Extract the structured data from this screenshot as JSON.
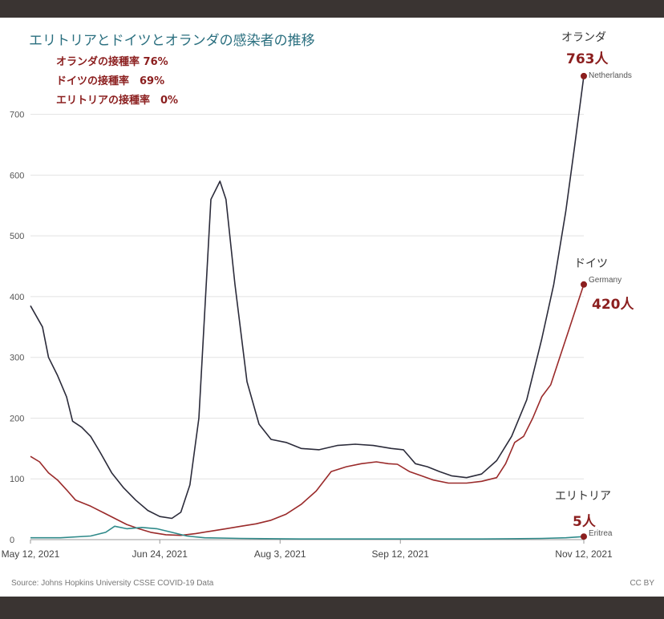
{
  "title": "エリトリアとドイツとオランダの感染者の推移",
  "vaccination_notes": [
    "オランダの接種率 76%",
    "ドイツの接種率　69%",
    "エリトリアの接種率　0%"
  ],
  "source": "Source: Johns Hopkins University CSSE COVID-19 Data",
  "license": "CC BY",
  "annotations": {
    "netherlands": {
      "jp": "オランダ",
      "value": "763人",
      "en": "Netherlands"
    },
    "germany": {
      "jp": "ドイツ",
      "value": "420人",
      "en": "Germany"
    },
    "eritrea": {
      "jp": "エリトリア",
      "value": "5人",
      "en": "Eritrea"
    }
  },
  "colors": {
    "netherlands": "#2b2b3a",
    "germany": "#9a2a2a",
    "eritrea": "#2f8a8a",
    "accent": "#8b1e1e"
  },
  "chart_data": {
    "type": "line",
    "x_ticks": [
      0,
      43,
      83,
      123,
      184
    ],
    "x_tick_labels": [
      "May 12, 2021",
      "Jun 24, 2021",
      "Aug 3, 2021",
      "Sep 12, 2021",
      "Nov 12, 2021"
    ],
    "y_ticks": [
      0,
      100,
      200,
      300,
      400,
      500,
      600,
      700
    ],
    "ylim": [
      0,
      780
    ],
    "xlim": [
      0,
      184
    ],
    "grid": true,
    "series": [
      {
        "name": "Netherlands",
        "key": "netherlands",
        "points": [
          [
            0,
            385
          ],
          [
            4,
            350
          ],
          [
            6,
            300
          ],
          [
            9,
            270
          ],
          [
            12,
            235
          ],
          [
            14,
            195
          ],
          [
            17,
            185
          ],
          [
            20,
            170
          ],
          [
            23,
            145
          ],
          [
            27,
            110
          ],
          [
            31,
            85
          ],
          [
            35,
            65
          ],
          [
            39,
            48
          ],
          [
            43,
            38
          ],
          [
            47,
            35
          ],
          [
            50,
            45
          ],
          [
            53,
            90
          ],
          [
            56,
            200
          ],
          [
            58,
            380
          ],
          [
            60,
            560
          ],
          [
            63,
            590
          ],
          [
            65,
            560
          ],
          [
            68,
            420
          ],
          [
            72,
            260
          ],
          [
            76,
            190
          ],
          [
            80,
            165
          ],
          [
            85,
            160
          ],
          [
            90,
            150
          ],
          [
            96,
            148
          ],
          [
            102,
            155
          ],
          [
            108,
            157
          ],
          [
            114,
            155
          ],
          [
            120,
            150
          ],
          [
            124,
            148
          ],
          [
            128,
            125
          ],
          [
            132,
            120
          ],
          [
            136,
            112
          ],
          [
            140,
            105
          ],
          [
            145,
            102
          ],
          [
            150,
            108
          ],
          [
            155,
            130
          ],
          [
            160,
            170
          ],
          [
            165,
            230
          ],
          [
            170,
            330
          ],
          [
            174,
            420
          ],
          [
            178,
            540
          ],
          [
            181,
            650
          ],
          [
            184,
            763
          ]
        ]
      },
      {
        "name": "Germany",
        "key": "germany",
        "points": [
          [
            0,
            137
          ],
          [
            3,
            128
          ],
          [
            6,
            110
          ],
          [
            9,
            98
          ],
          [
            12,
            82
          ],
          [
            15,
            65
          ],
          [
            20,
            55
          ],
          [
            24,
            45
          ],
          [
            28,
            35
          ],
          [
            32,
            25
          ],
          [
            36,
            18
          ],
          [
            40,
            12
          ],
          [
            45,
            8
          ],
          [
            50,
            7
          ],
          [
            55,
            10
          ],
          [
            60,
            14
          ],
          [
            65,
            18
          ],
          [
            70,
            22
          ],
          [
            75,
            26
          ],
          [
            80,
            32
          ],
          [
            85,
            42
          ],
          [
            90,
            58
          ],
          [
            95,
            80
          ],
          [
            100,
            112
          ],
          [
            105,
            120
          ],
          [
            110,
            125
          ],
          [
            115,
            128
          ],
          [
            119,
            125
          ],
          [
            122,
            124
          ],
          [
            126,
            112
          ],
          [
            130,
            105
          ],
          [
            134,
            98
          ],
          [
            139,
            93
          ],
          [
            145,
            93
          ],
          [
            150,
            96
          ],
          [
            155,
            102
          ],
          [
            158,
            125
          ],
          [
            161,
            160
          ],
          [
            164,
            170
          ],
          [
            167,
            200
          ],
          [
            170,
            235
          ],
          [
            173,
            255
          ],
          [
            176,
            300
          ],
          [
            179,
            345
          ],
          [
            182,
            390
          ],
          [
            184,
            420
          ]
        ]
      },
      {
        "name": "Eritrea",
        "key": "eritrea",
        "points": [
          [
            0,
            3
          ],
          [
            10,
            3
          ],
          [
            20,
            6
          ],
          [
            25,
            12
          ],
          [
            28,
            22
          ],
          [
            32,
            18
          ],
          [
            37,
            20
          ],
          [
            42,
            18
          ],
          [
            47,
            12
          ],
          [
            52,
            6
          ],
          [
            58,
            3
          ],
          [
            70,
            2
          ],
          [
            90,
            1
          ],
          [
            120,
            1
          ],
          [
            150,
            1
          ],
          [
            170,
            2
          ],
          [
            178,
            3
          ],
          [
            184,
            5
          ]
        ]
      }
    ]
  }
}
